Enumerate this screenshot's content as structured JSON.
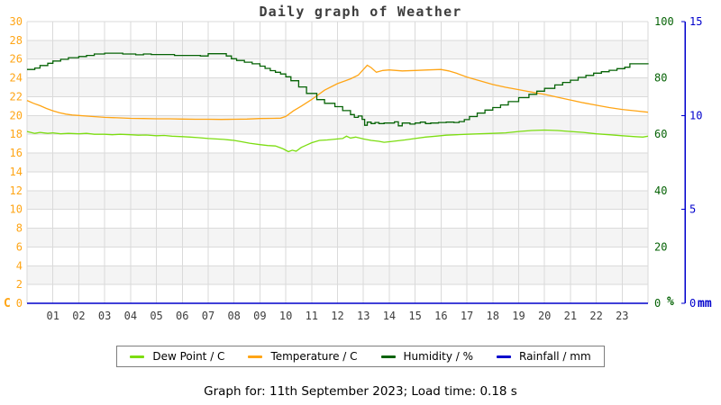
{
  "title": "Daily graph of Weather",
  "footer": "Graph for: 11th September 2023; Load time: 0.18 s",
  "colors": {
    "dew_point": "#7CDD11",
    "temperature": "#FFA515",
    "humidity": "#066306",
    "rainfall": "#0000CC",
    "grid": "#DADADA",
    "band": "#F4F4F4",
    "axis_text": "#3D3D3D"
  },
  "chart_data": {
    "type": "line",
    "title": "Daily graph of Weather",
    "xlabel": "",
    "x_axis": {
      "range": [
        0,
        24
      ],
      "tick_labels": [
        "01",
        "02",
        "03",
        "04",
        "05",
        "06",
        "07",
        "08",
        "09",
        "10",
        "11",
        "12",
        "13",
        "14",
        "15",
        "16",
        "17",
        "18",
        "19",
        "20",
        "21",
        "22",
        "23"
      ]
    },
    "axes": {
      "left": {
        "unit": "C",
        "range": [
          0,
          30
        ],
        "tick_step": 2,
        "color": "#FFA515"
      },
      "right_humidity": {
        "unit": "%",
        "range": [
          0,
          100
        ],
        "tick_step": 20,
        "color": "#066306"
      },
      "right_rain": {
        "unit": "mm",
        "range": [
          0,
          15
        ],
        "tick_step": 5,
        "color": "#0000CC"
      }
    },
    "grid": true,
    "alternating_bands": true,
    "legend_position": "bottom",
    "series": [
      {
        "name": "Dew Point / C",
        "axis": "left",
        "color": "#7CDD11",
        "step": false,
        "points": [
          [
            0,
            18.3
          ],
          [
            0.3,
            18.1
          ],
          [
            0.5,
            18.2
          ],
          [
            0.8,
            18.1
          ],
          [
            1,
            18.15
          ],
          [
            1.3,
            18.05
          ],
          [
            1.6,
            18.1
          ],
          [
            2,
            18.05
          ],
          [
            2.3,
            18.1
          ],
          [
            2.6,
            18.0
          ],
          [
            3,
            18.0
          ],
          [
            3.3,
            17.95
          ],
          [
            3.6,
            18.0
          ],
          [
            4,
            17.95
          ],
          [
            4.3,
            17.9
          ],
          [
            4.6,
            17.92
          ],
          [
            5,
            17.85
          ],
          [
            5.3,
            17.88
          ],
          [
            5.6,
            17.8
          ],
          [
            6,
            17.75
          ],
          [
            6.3,
            17.7
          ],
          [
            6.6,
            17.65
          ],
          [
            7,
            17.55
          ],
          [
            7.3,
            17.5
          ],
          [
            7.6,
            17.45
          ],
          [
            8,
            17.35
          ],
          [
            8.3,
            17.2
          ],
          [
            8.6,
            17.05
          ],
          [
            9,
            16.9
          ],
          [
            9.3,
            16.8
          ],
          [
            9.6,
            16.75
          ],
          [
            9.9,
            16.45
          ],
          [
            10.1,
            16.15
          ],
          [
            10.25,
            16.3
          ],
          [
            10.4,
            16.2
          ],
          [
            10.6,
            16.6
          ],
          [
            10.8,
            16.85
          ],
          [
            11,
            17.1
          ],
          [
            11.3,
            17.35
          ],
          [
            11.6,
            17.4
          ],
          [
            12,
            17.5
          ],
          [
            12.2,
            17.55
          ],
          [
            12.35,
            17.8
          ],
          [
            12.5,
            17.6
          ],
          [
            12.7,
            17.7
          ],
          [
            13,
            17.5
          ],
          [
            13.3,
            17.35
          ],
          [
            13.6,
            17.25
          ],
          [
            13.8,
            17.15
          ],
          [
            14,
            17.2
          ],
          [
            14.3,
            17.3
          ],
          [
            14.6,
            17.4
          ],
          [
            15,
            17.55
          ],
          [
            15.4,
            17.7
          ],
          [
            15.8,
            17.8
          ],
          [
            16.2,
            17.9
          ],
          [
            16.6,
            17.95
          ],
          [
            17,
            18.0
          ],
          [
            17.5,
            18.05
          ],
          [
            18,
            18.1
          ],
          [
            18.5,
            18.15
          ],
          [
            19,
            18.3
          ],
          [
            19.5,
            18.4
          ],
          [
            20,
            18.45
          ],
          [
            20.5,
            18.4
          ],
          [
            21,
            18.3
          ],
          [
            21.5,
            18.2
          ],
          [
            22,
            18.05
          ],
          [
            22.5,
            17.95
          ],
          [
            23,
            17.85
          ],
          [
            23.5,
            17.75
          ],
          [
            23.8,
            17.7
          ],
          [
            24,
            17.8
          ]
        ]
      },
      {
        "name": "Temperature / C",
        "axis": "left",
        "color": "#FFA515",
        "step": false,
        "points": [
          [
            0,
            21.6
          ],
          [
            0.25,
            21.3
          ],
          [
            0.5,
            21.05
          ],
          [
            0.75,
            20.75
          ],
          [
            1,
            20.5
          ],
          [
            1.25,
            20.3
          ],
          [
            1.5,
            20.15
          ],
          [
            1.75,
            20.05
          ],
          [
            2,
            20.0
          ],
          [
            2.5,
            19.9
          ],
          [
            3,
            19.8
          ],
          [
            3.5,
            19.75
          ],
          [
            4,
            19.7
          ],
          [
            4.5,
            19.68
          ],
          [
            5,
            19.65
          ],
          [
            5.5,
            19.65
          ],
          [
            6,
            19.62
          ],
          [
            6.5,
            19.6
          ],
          [
            7,
            19.6
          ],
          [
            7.5,
            19.58
          ],
          [
            8,
            19.6
          ],
          [
            8.5,
            19.62
          ],
          [
            9,
            19.68
          ],
          [
            9.5,
            19.7
          ],
          [
            9.8,
            19.72
          ],
          [
            10,
            19.9
          ],
          [
            10.3,
            20.5
          ],
          [
            10.6,
            21.0
          ],
          [
            11,
            21.7
          ],
          [
            11.5,
            22.7
          ],
          [
            12,
            23.4
          ],
          [
            12.5,
            23.9
          ],
          [
            12.8,
            24.3
          ],
          [
            13,
            24.9
          ],
          [
            13.15,
            25.35
          ],
          [
            13.3,
            25.1
          ],
          [
            13.5,
            24.6
          ],
          [
            13.75,
            24.8
          ],
          [
            14,
            24.85
          ],
          [
            14.5,
            24.75
          ],
          [
            15,
            24.8
          ],
          [
            15.5,
            24.85
          ],
          [
            16,
            24.9
          ],
          [
            16.3,
            24.75
          ],
          [
            16.6,
            24.5
          ],
          [
            17,
            24.1
          ],
          [
            17.5,
            23.7
          ],
          [
            18,
            23.3
          ],
          [
            18.5,
            23.0
          ],
          [
            19,
            22.75
          ],
          [
            19.5,
            22.5
          ],
          [
            20,
            22.25
          ],
          [
            20.5,
            21.95
          ],
          [
            21,
            21.65
          ],
          [
            21.5,
            21.35
          ],
          [
            22,
            21.1
          ],
          [
            22.5,
            20.85
          ],
          [
            23,
            20.65
          ],
          [
            23.5,
            20.5
          ],
          [
            24,
            20.35
          ]
        ]
      },
      {
        "name": "Humidity / %",
        "axis": "right_humidity",
        "color": "#066306",
        "step": true,
        "points": [
          [
            0,
            83
          ],
          [
            0.3,
            83.5
          ],
          [
            0.5,
            84.4
          ],
          [
            0.8,
            85.2
          ],
          [
            1,
            86
          ],
          [
            1.3,
            86.6
          ],
          [
            1.6,
            87.2
          ],
          [
            2,
            87.6
          ],
          [
            2.3,
            88
          ],
          [
            2.6,
            88.5
          ],
          [
            3,
            88.8
          ],
          [
            3.5,
            88.8
          ],
          [
            3.7,
            88.5
          ],
          [
            4,
            88.5
          ],
          [
            4.2,
            88.2
          ],
          [
            4.5,
            88.5
          ],
          [
            4.8,
            88.3
          ],
          [
            5.5,
            88.3
          ],
          [
            5.7,
            88
          ],
          [
            6.5,
            88
          ],
          [
            6.7,
            87.8
          ],
          [
            7,
            88.6
          ],
          [
            7.5,
            88.6
          ],
          [
            7.7,
            87.8
          ],
          [
            7.9,
            86.8
          ],
          [
            8.1,
            86.2
          ],
          [
            8.4,
            85.6
          ],
          [
            8.7,
            85
          ],
          [
            9,
            84.2
          ],
          [
            9.2,
            83.4
          ],
          [
            9.4,
            82.6
          ],
          [
            9.6,
            82
          ],
          [
            9.8,
            81.4
          ],
          [
            10,
            80.4
          ],
          [
            10.2,
            79
          ],
          [
            10.5,
            76.8
          ],
          [
            10.8,
            74.5
          ],
          [
            11.2,
            72.3
          ],
          [
            11.5,
            71
          ],
          [
            11.9,
            69.8
          ],
          [
            12.2,
            68.4
          ],
          [
            12.5,
            67
          ],
          [
            12.65,
            66
          ],
          [
            12.8,
            66.5
          ],
          [
            12.95,
            65.3
          ],
          [
            13.05,
            63.2
          ],
          [
            13.15,
            64.3
          ],
          [
            13.3,
            63.8
          ],
          [
            13.45,
            64.2
          ],
          [
            13.6,
            63.8
          ],
          [
            13.8,
            64
          ],
          [
            14,
            64
          ],
          [
            14.2,
            64.4
          ],
          [
            14.35,
            63
          ],
          [
            14.5,
            64
          ],
          [
            14.8,
            63.6
          ],
          [
            15,
            64
          ],
          [
            15.2,
            64.3
          ],
          [
            15.4,
            63.8
          ],
          [
            15.6,
            64
          ],
          [
            15.9,
            64.2
          ],
          [
            16.2,
            64.3
          ],
          [
            16.5,
            64.2
          ],
          [
            16.7,
            64.5
          ],
          [
            16.9,
            65.2
          ],
          [
            17.1,
            66.3
          ],
          [
            17.4,
            67.5
          ],
          [
            17.7,
            68.6
          ],
          [
            18,
            69.5
          ],
          [
            18.3,
            70.4
          ],
          [
            18.6,
            71.6
          ],
          [
            19,
            73
          ],
          [
            19.4,
            74.2
          ],
          [
            19.7,
            75.3
          ],
          [
            20,
            76.3
          ],
          [
            20.4,
            77.5
          ],
          [
            20.7,
            78.4
          ],
          [
            21,
            79.2
          ],
          [
            21.3,
            80.2
          ],
          [
            21.6,
            80.9
          ],
          [
            21.9,
            81.7
          ],
          [
            22.2,
            82.2
          ],
          [
            22.5,
            82.7
          ],
          [
            22.8,
            83.3
          ],
          [
            23.1,
            83.8
          ],
          [
            23.3,
            85
          ],
          [
            23.7,
            85
          ],
          [
            24,
            85.2
          ]
        ]
      },
      {
        "name": "Rainfall / mm",
        "axis": "right_rain",
        "color": "#0000CC",
        "step": false,
        "points": [
          [
            0,
            0
          ],
          [
            24,
            0
          ]
        ]
      }
    ],
    "legend": [
      {
        "label": "Dew Point / C",
        "color": "#7CDD11"
      },
      {
        "label": "Temperature / C",
        "color": "#FFA515"
      },
      {
        "label": "Humidity / %",
        "color": "#066306"
      },
      {
        "label": "Rainfall / mm",
        "color": "#0000CC"
      }
    ]
  }
}
